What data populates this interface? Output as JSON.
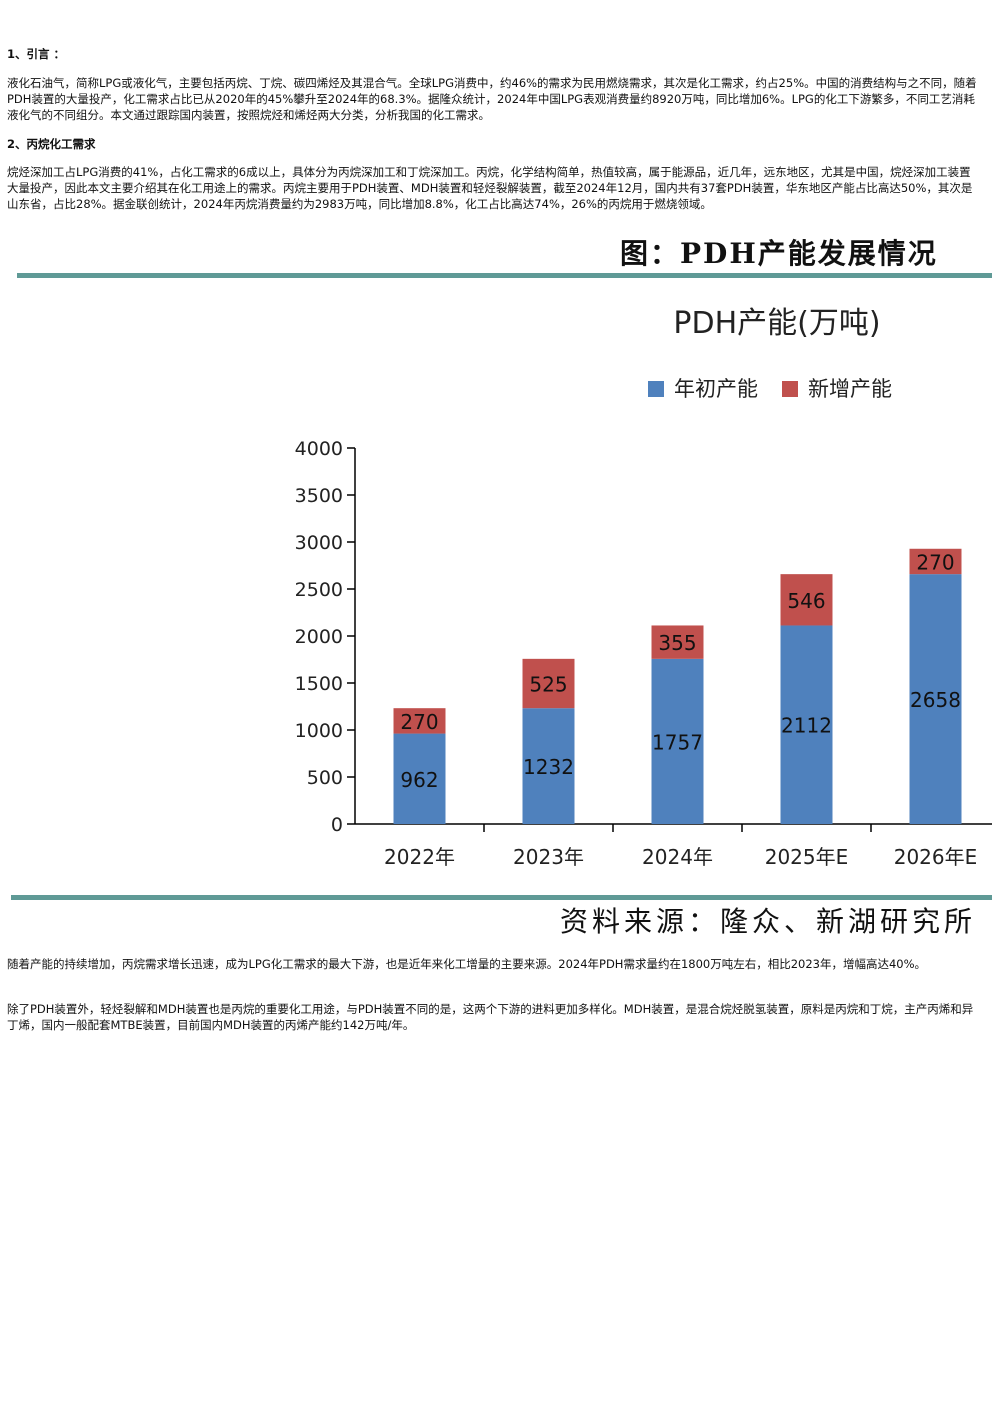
{
  "section1": {
    "heading": "1、引言 ：",
    "paragraph": "液化石油气，简称LPG或液化气，主要包括丙烷、丁烷、碳四烯烃及其混合气。全球LPG消费中，约46%的需求为民用燃烧需求，其次是化工需求，约占25%。中国的消费结构与之不同，随着PDH装置的大量投产，化工需求占比已从2020年的45%攀升至2024年的68.3%。据隆众统计，2024年中国LPG表观消费量约8920万吨，同比增加6%。LPG的化工下游繁多，不同工艺消耗液化气的不同组分。本文通过跟踪国内装置，按照烷烃和烯烃两大分类，分析我国的化工需求。"
  },
  "section2": {
    "heading": "2、丙烷化工需求",
    "paragraph": "烷烃深加工占LPG消费的41%，占化工需求的6成以上，具体分为丙烷深加工和丁烷深加工。丙烷，化学结构简单，热值较高，属于能源品，近几年，远东地区，尤其是中国，烷烃深加工装置大量投产，因此本文主要介绍其在化工用途上的需求。丙烷主要用于PDH装置、MDH装置和轻烃裂解装置，截至2024年12月，国内共有37套PDH装置，华东地区产能占比高达50%，其次是山东省，占比28%。据金联创统计，2024年丙烷消费量约为2983万吨，同比增加8.8%，化工占比高达74%，26%的丙烷用于燃烧领域。"
  },
  "figure": {
    "title": "图：PDH产能发展情况",
    "source": "资料来源：隆众、新湖研究所"
  },
  "after_figure": {
    "paragraph1": "随着产能的持续增加，丙烷需求增长迅速，成为LPG化工需求的最大下游，也是近年来化工增量的主要来源。2024年PDH需求量约在1800万吨左右，相比2023年，增幅高达40%。",
    "paragraph2": "除了PDH装置外，轻烃裂解和MDH装置也是丙烷的重要化工用途，与PDH装置不同的是，这两个下游的进料更加多样化。MDH装置，是混合烷烃脱氢装置，原料是丙烷和丁烷，主产丙烯和异丁烯，国内一般配套MTBE装置，目前国内MDH装置的丙烯产能约142万吨/年。"
  },
  "chart_data": {
    "type": "bar",
    "stacked": true,
    "title": "PDH产能(万吨)",
    "categories": [
      "2022年",
      "2023年",
      "2024年",
      "2025年E",
      "2026年E"
    ],
    "series": [
      {
        "name": "年初产能",
        "values": [
          962,
          1232,
          1757,
          2112,
          2658
        ],
        "color": "#4f81bd"
      },
      {
        "name": "新增产能",
        "values": [
          270,
          525,
          355,
          546,
          270
        ],
        "color": "#c0504d"
      }
    ],
    "yticks": [
      "0",
      "500",
      "1000",
      "1500",
      "2000",
      "2500",
      "3000",
      "3500",
      "4000"
    ],
    "ylim": [
      0,
      4000
    ],
    "legend_position": "top",
    "grid": false
  }
}
